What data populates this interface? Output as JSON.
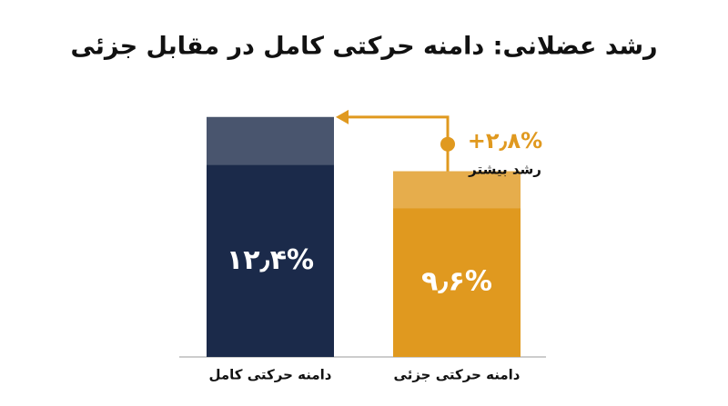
{
  "chart_data": {
    "type": "bar",
    "title": "رشد عضلانی: دامنه حرکتی کامل در مقابل جزئی",
    "categories": [
      "دامنه حرکتی کامل",
      "دامنه حرکتی جزئی"
    ],
    "values": [
      12.4,
      9.6
    ],
    "value_labels": [
      "۱۲٫۴%",
      "۹٫۶%"
    ],
    "colors": [
      "#1b2a4a",
      "#e0991f"
    ],
    "annotation": {
      "text": "+۲٫۸%",
      "subtext": "رشد بیشتر",
      "color": "#e0991f"
    }
  }
}
